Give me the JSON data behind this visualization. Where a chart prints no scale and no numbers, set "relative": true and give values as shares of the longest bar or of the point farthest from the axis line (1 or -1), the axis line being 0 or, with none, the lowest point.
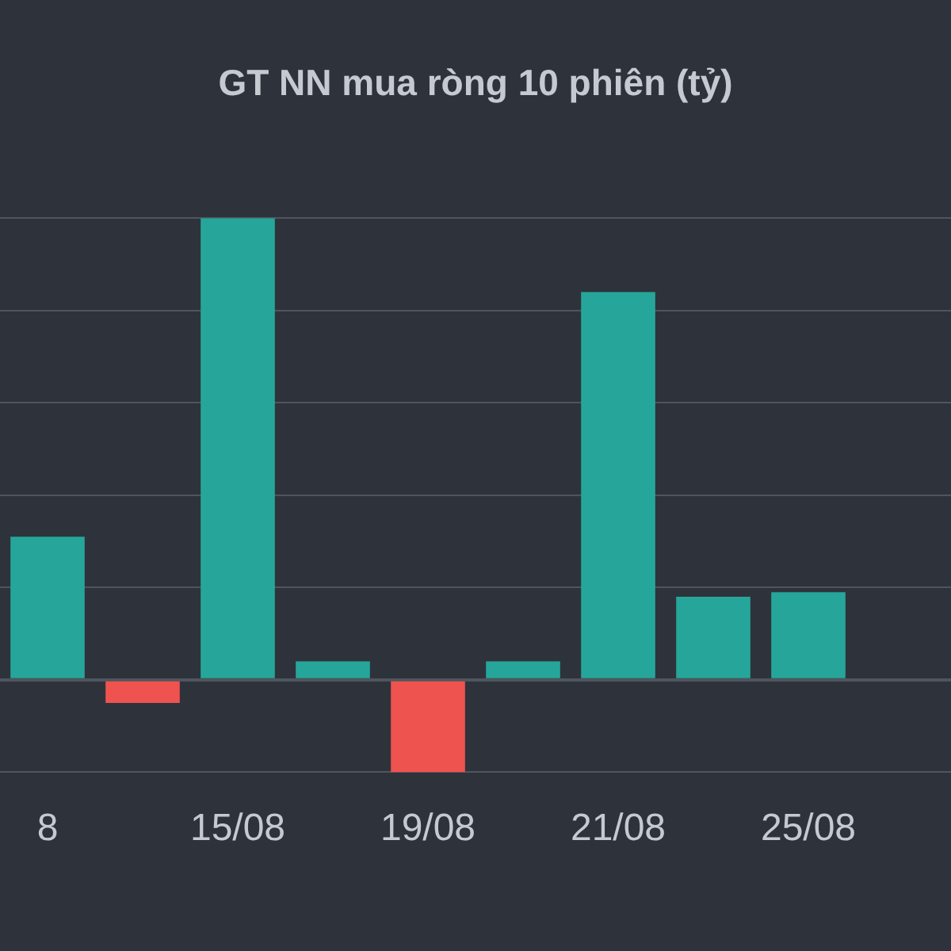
{
  "chart_data": {
    "type": "bar",
    "title": "GT NN mua ròng 10 phiên (tỷ)",
    "relative": true,
    "grid": "y",
    "categories": [
      "8",
      null,
      "15/08",
      null,
      "19/08",
      null,
      "21/08",
      null,
      "25/08",
      null
    ],
    "values": [
      0.31,
      -0.05,
      1,
      0.04,
      -0.2,
      0.04,
      0.84,
      0.18,
      0.19,
      null
    ],
    "colors": [
      "#26a69a",
      "#ef5350",
      "#26a69a",
      "#26a69a",
      "#ef5350",
      "#26a69a",
      "#26a69a",
      "#26a69a",
      "#26a69a",
      "#26a69a"
    ]
  }
}
